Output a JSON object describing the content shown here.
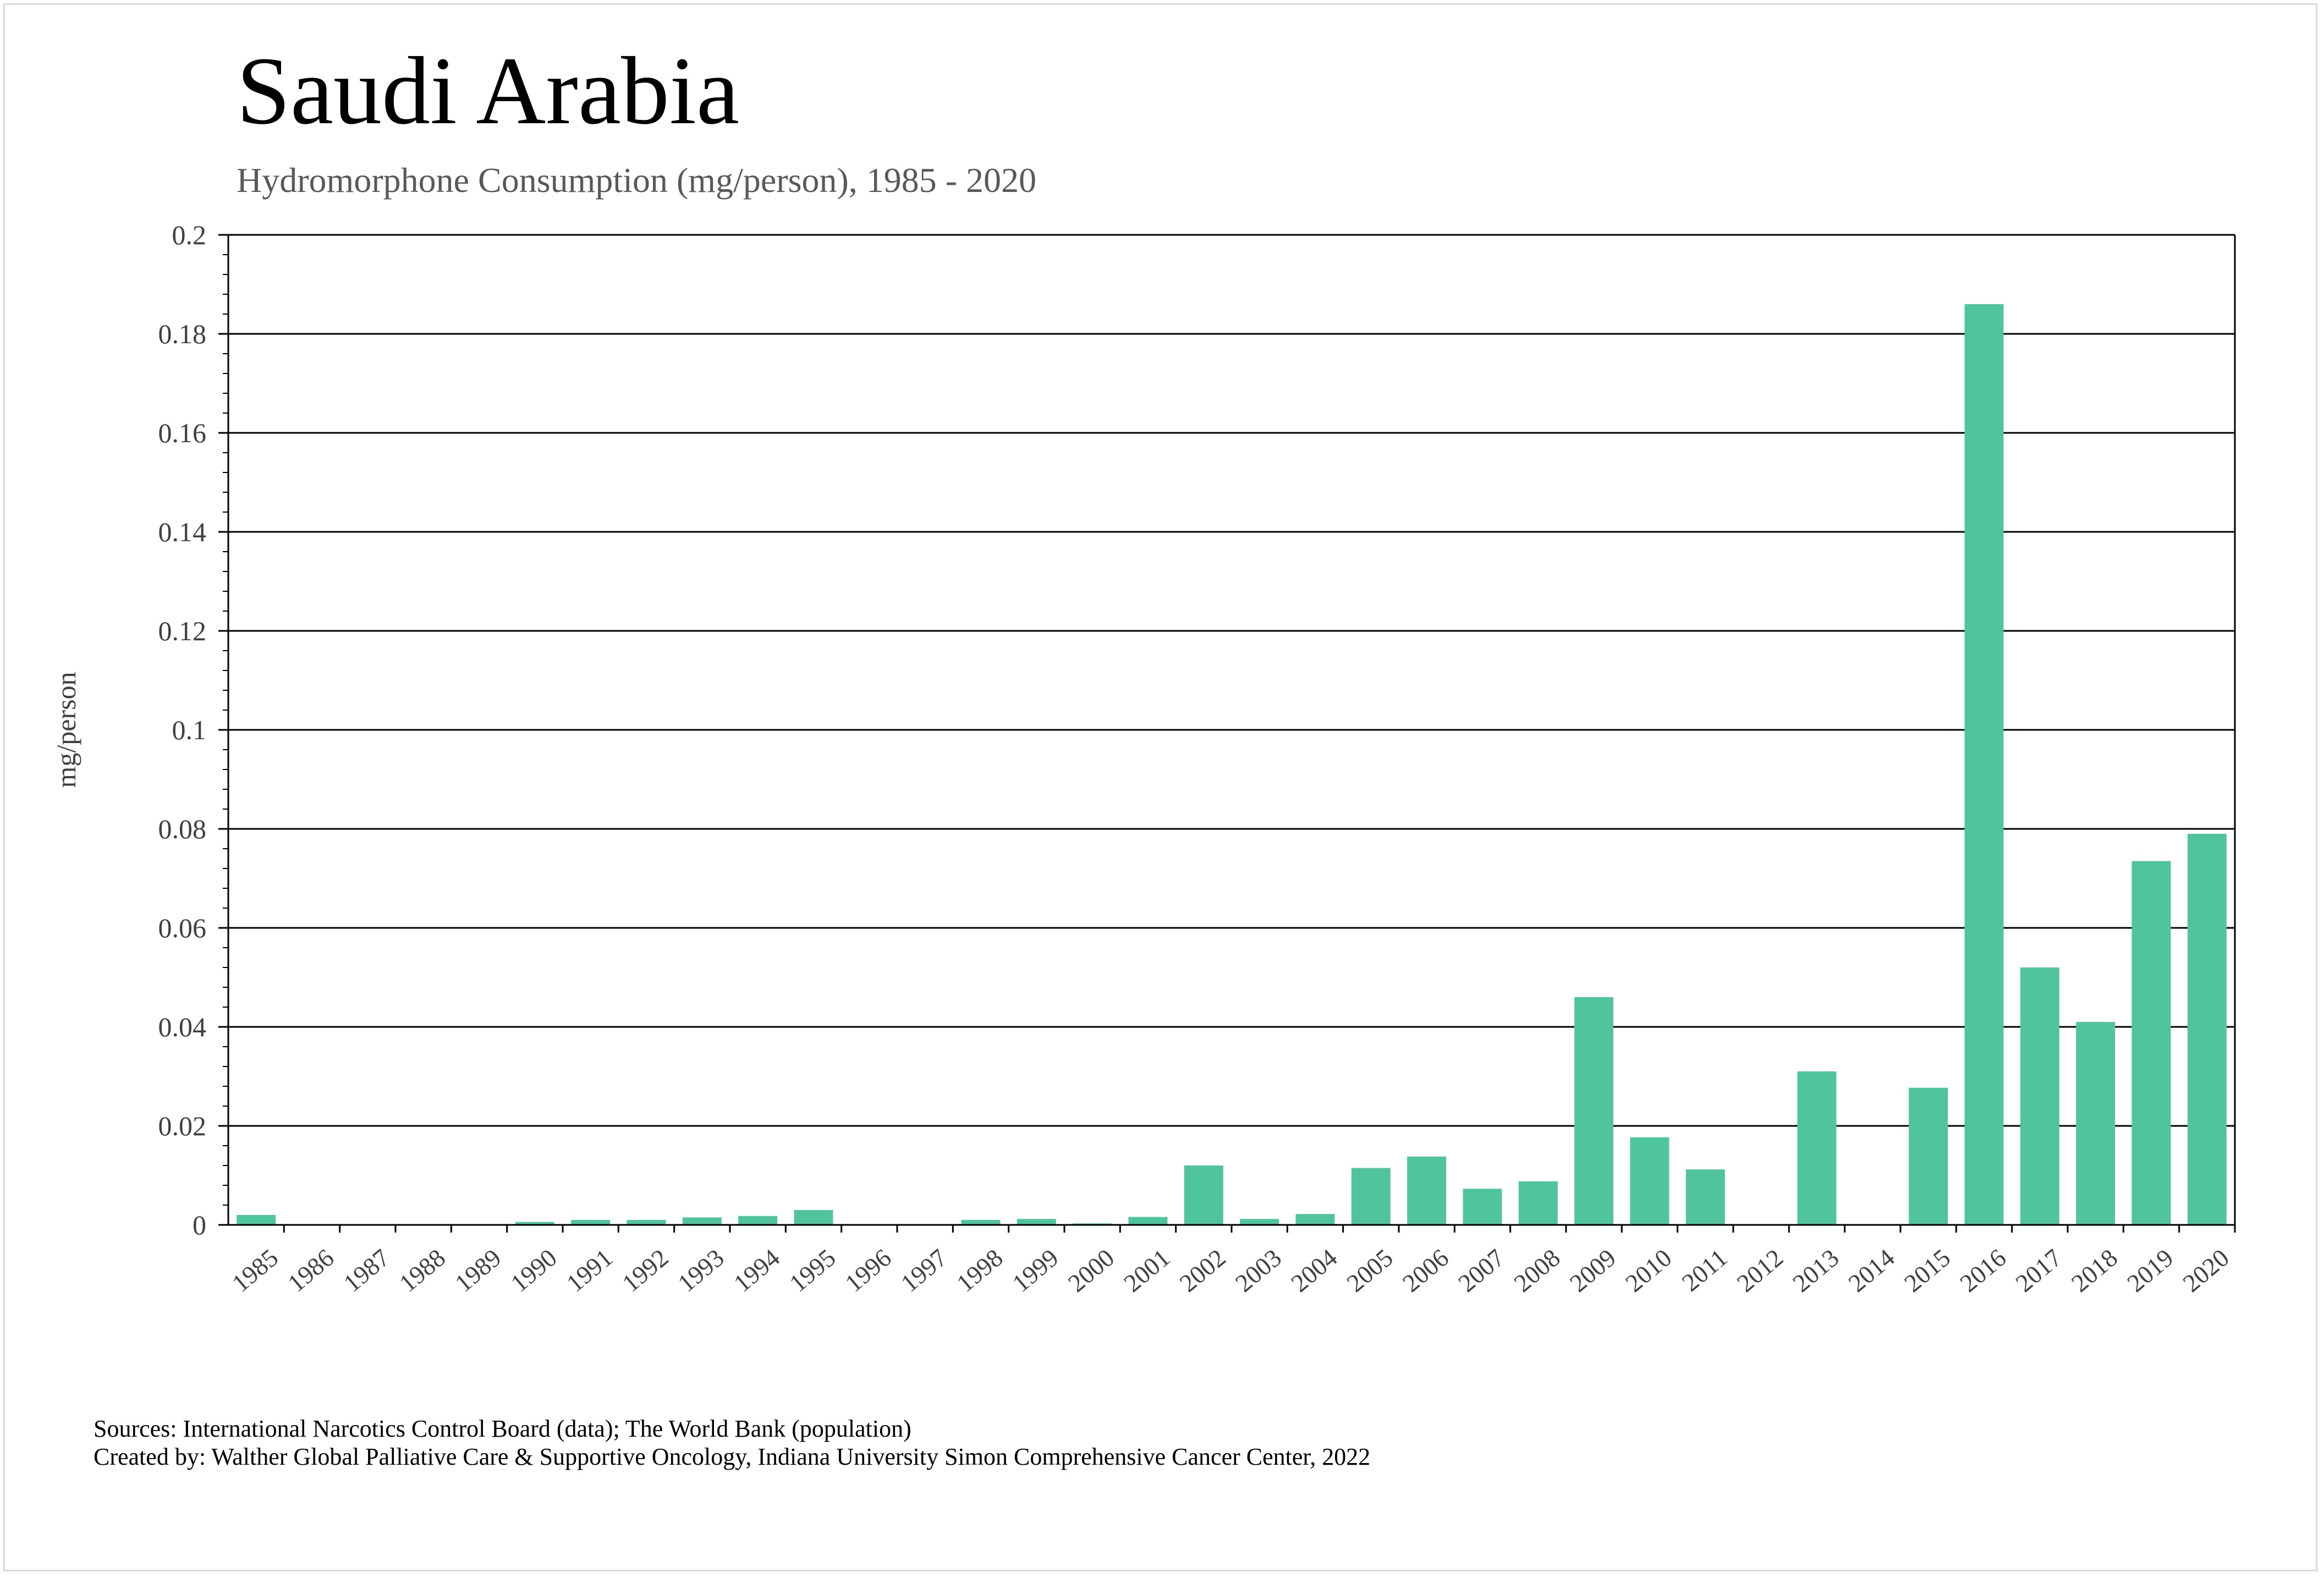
{
  "header": {
    "title": "Saudi Arabia",
    "subtitle": "Hydromorphone Consumption (mg/person), 1985 - 2020"
  },
  "footer": {
    "sources": "Sources: International Narcotics Control Board (data); The World Bank (population)",
    "created_by": "Created by: Walther Global Palliative Care & Supportive Oncology, Indiana University Simon Comprehensive Cancer Center, 2022"
  },
  "chart_data": {
    "type": "bar",
    "title": "Saudi Arabia",
    "subtitle": "Hydromorphone Consumption (mg/person), 1985 - 2020",
    "xlabel": "",
    "ylabel": "mg/person",
    "ylim": [
      0,
      0.2
    ],
    "yticks": [
      "0",
      "0.02",
      "0.04",
      "0.06",
      "0.08",
      "0.1",
      "0.12",
      "0.14",
      "0.16",
      "0.18",
      "0.2"
    ],
    "grid": true,
    "bar_color": "#50c49f",
    "categories": [
      "1985",
      "1986",
      "1987",
      "1988",
      "1989",
      "1990",
      "1991",
      "1992",
      "1993",
      "1994",
      "1995",
      "1996",
      "1997",
      "1998",
      "1999",
      "2000",
      "2001",
      "2002",
      "2003",
      "2004",
      "2005",
      "2006",
      "2007",
      "2008",
      "2009",
      "2010",
      "2011",
      "2012",
      "2013",
      "2014",
      "2015",
      "2016",
      "2017",
      "2018",
      "2019",
      "2020"
    ],
    "values": [
      0.002,
      0,
      0,
      0,
      0,
      0.0006,
      0.001,
      0.001,
      0.0015,
      0.0018,
      0.003,
      0,
      0,
      0.001,
      0.0012,
      0.0003,
      0.0016,
      0.012,
      0.0012,
      0.0022,
      0.0115,
      0.0138,
      0.0073,
      0.0088,
      0.046,
      0.0177,
      0.0112,
      0,
      0.031,
      0,
      0.0277,
      0.186,
      0.052,
      0.041,
      0.0735,
      0.079
    ]
  }
}
